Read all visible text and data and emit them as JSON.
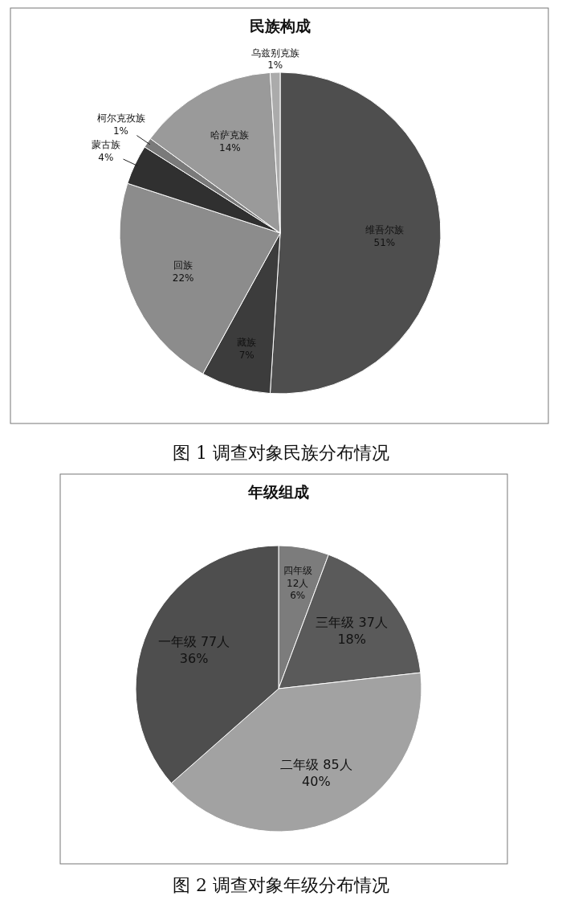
{
  "chart_data": [
    {
      "type": "pie",
      "title": "民族构成",
      "categories": [
        "维吾尔族",
        "藏族",
        "回族",
        "蒙古族",
        "柯尔克孜族",
        "哈萨克族",
        "乌兹别克族"
      ],
      "values": [
        51,
        7,
        22,
        4,
        1,
        14,
        1
      ],
      "colors": [
        "#4e4e4e",
        "#3c3c3c",
        "#8c8c8c",
        "#303030",
        "#7a7a7a",
        "#9a9a9a",
        "#ababab"
      ],
      "value_labels": [
        "51%",
        "7%",
        "22%",
        "4%",
        "1%",
        "14%",
        "1%"
      ],
      "annotations": [
        "图 1  调查对象民族分布情况"
      ]
    },
    {
      "type": "pie",
      "title": "年级组成",
      "categories": [
        "四年级",
        "三年级",
        "二年级",
        "一年级"
      ],
      "values": [
        12,
        37,
        85,
        77
      ],
      "colors": [
        "#7c7c7c",
        "#5a5a5a",
        "#a2a2a2",
        "#4e4e4e"
      ],
      "value_labels": [
        "12人\n6%",
        "37人\n18%",
        "85人\n40%",
        "77人\n36%"
      ],
      "annotations": [
        "图 2  调查对象年级分布情况"
      ]
    }
  ]
}
